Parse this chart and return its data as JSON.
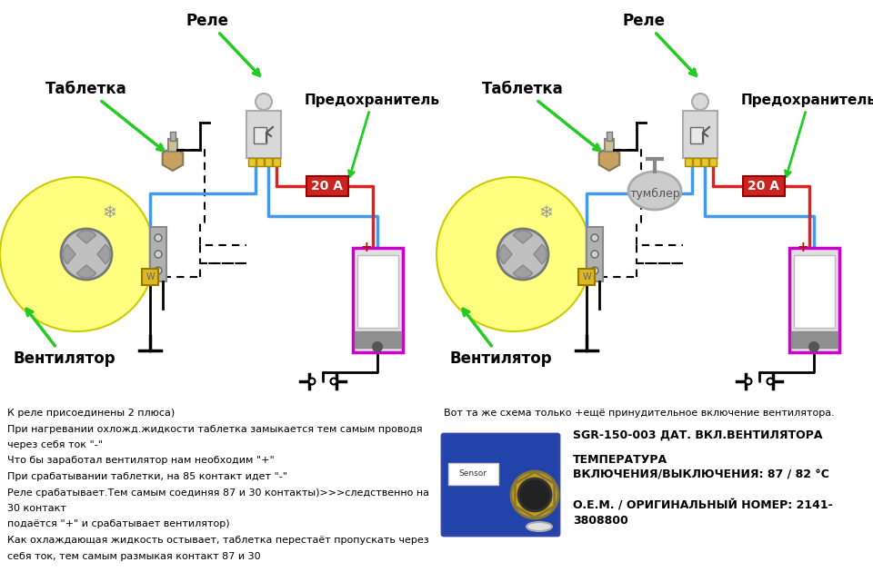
{
  "bg_color": "#ffffff",
  "title_left": "Таблетка",
  "title_rele_left": "Реле",
  "title_predox_left": "Предохранитель",
  "title_vent_left": "Вентилятор",
  "fuse_label": "20 А",
  "title_rele_right": "Реле",
  "title_tabl_right": "Таблетка",
  "title_predox_right": "Предохранитель",
  "title_vent_right": "Вентилятор",
  "tumbler_label": "тумблер",
  "desc_left": [
    "К реле присоединены 2 плюса)",
    "При нагревании охложд.жидкости таблетка замыкается тем самым проводя",
    "через себя ток \"-\"",
    "Что бы заработал вентилятор нам необходим \"+\"",
    "При срабатывании таблетки, на 85 контакт идет \"-\"",
    "Реле срабатывает.Тем самым соединяя 87 и 30 контакты)>>>следственно на",
    "30 контакт",
    "подаётся \"+\" и срабатывает вентилятор)",
    "Как охлаждающая жидкость остывает, таблетка перестаёт пропускать через",
    "себя ток, тем самым размыкая контакт 87 и 30"
  ],
  "desc_right_line1": "Вот та же схема только +ещё принудительное включение вентилятора.",
  "desc_right_line2": "SGR-150-003 ДАТ. ВКЛ.ВЕНТИЛЯТОРА",
  "desc_right_line3": "ТЕМПЕРАТУРА",
  "desc_right_line4": "ВКЛЮЧЕНИЯ/ВЫКЛЮЧЕНИЯ: 87 / 82 °C",
  "desc_right_line5": "O.E.M. / ОРИГИНАЛЬНЫЙ НОМЕР: 2141-",
  "desc_right_line6": "3808800"
}
